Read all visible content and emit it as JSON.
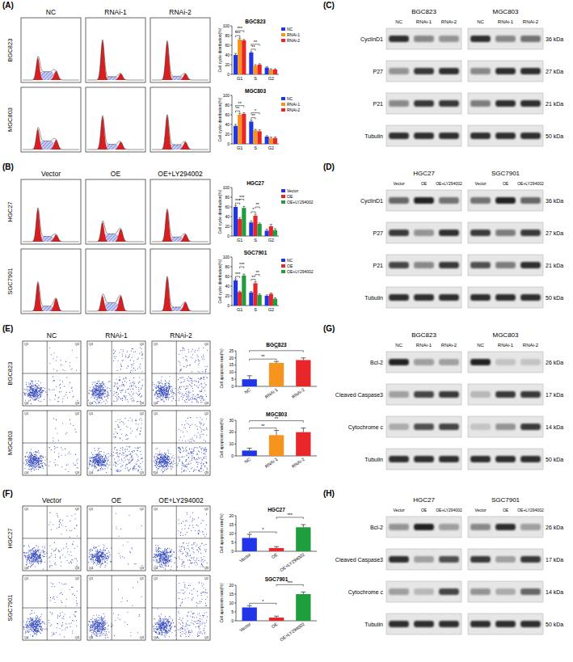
{
  "chart_data": [
    {
      "type": "bar",
      "title": "BGC823",
      "y_label": "Cell cycle distribution(%)",
      "categories": [
        "G1",
        "S",
        "G2"
      ],
      "series": [
        {
          "name": "NC",
          "color": "#1f35e6",
          "values": [
            40,
            45,
            14
          ],
          "errors": [
            3,
            2,
            2
          ]
        },
        {
          "name": "RNAi-1",
          "color": "#f7941d",
          "values": [
            72,
            18,
            10
          ],
          "errors": [
            3,
            2,
            1.5
          ]
        },
        {
          "name": "RNAi-2",
          "color": "#e8262a",
          "values": [
            70,
            20,
            10
          ],
          "errors": [
            2,
            2,
            1.5
          ]
        }
      ],
      "ylim": [
        0,
        100
      ],
      "yticks": [
        0,
        20,
        40,
        60,
        80,
        100
      ],
      "legend": "right",
      "annotations": [
        {
          "text": "***",
          "category": "G1",
          "between": [
            "NC",
            "RNAi-1"
          ]
        },
        {
          "text": "***",
          "category": "G1",
          "between": [
            "NC",
            "RNAi-2"
          ]
        },
        {
          "text": "**",
          "category": "S",
          "between": [
            "NC",
            "RNAi-1"
          ]
        },
        {
          "text": "**",
          "category": "S",
          "between": [
            "NC",
            "RNAi-2"
          ]
        }
      ]
    },
    {
      "type": "bar",
      "title": "MGC803",
      "y_label": "Cell cycle distribution(%)",
      "categories": [
        "G1",
        "S",
        "G2"
      ],
      "series": [
        {
          "name": "NC",
          "color": "#1f35e6",
          "values": [
            37,
            46,
            15
          ],
          "errors": [
            3,
            3,
            2
          ]
        },
        {
          "name": "RNAi-1",
          "color": "#f7941d",
          "values": [
            60,
            28,
            12
          ],
          "errors": [
            3,
            2,
            2
          ]
        },
        {
          "name": "RNAi-2",
          "color": "#e8262a",
          "values": [
            62,
            26,
            12
          ],
          "errors": [
            2,
            3,
            2
          ]
        }
      ],
      "ylim": [
        0,
        100
      ],
      "yticks": [
        0,
        20,
        40,
        60,
        80,
        100
      ],
      "legend": "right",
      "annotations": [
        {
          "text": "**",
          "category": "G1",
          "between": [
            "NC",
            "RNAi-1"
          ]
        },
        {
          "text": "**",
          "category": "G1",
          "between": [
            "NC",
            "RNAi-2"
          ]
        },
        {
          "text": "**",
          "category": "S",
          "between": [
            "NC",
            "RNAi-1"
          ]
        },
        {
          "text": "*",
          "category": "S",
          "between": [
            "NC",
            "RNAi-2"
          ]
        }
      ]
    },
    {
      "type": "bar",
      "title": "HGC27",
      "y_label": "Cell cycle distribution(%)",
      "categories": [
        "G1",
        "S",
        "G2"
      ],
      "series": [
        {
          "name": "Vector",
          "color": "#1f35e6",
          "values": [
            60,
            28,
            11
          ],
          "errors": [
            3,
            3,
            3
          ]
        },
        {
          "name": "OE",
          "color": "#e8262a",
          "values": [
            35,
            42,
            20
          ],
          "errors": [
            3,
            3,
            4
          ]
        },
        {
          "name": "OE+LY294002",
          "color": "#1e9e3c",
          "values": [
            58,
            25,
            12
          ],
          "errors": [
            3,
            2,
            3
          ]
        }
      ],
      "ylim": [
        0,
        100
      ],
      "yticks": [
        0,
        20,
        40,
        60,
        80,
        100
      ],
      "legend": "right",
      "annotations": [
        {
          "text": "***",
          "category": "G1",
          "between": [
            "Vector",
            "OE"
          ]
        },
        {
          "text": "***",
          "category": "G1",
          "between": [
            "OE",
            "OE+LY294002"
          ]
        },
        {
          "text": "*",
          "category": "S",
          "between": [
            "Vector",
            "OE"
          ]
        },
        {
          "text": "**",
          "category": "S",
          "between": [
            "OE",
            "OE+LY294002"
          ]
        }
      ]
    },
    {
      "type": "bar",
      "title": "SGC7901",
      "y_label": "Cell cycle distribution(%)",
      "categories": [
        "G1",
        "S",
        "G2"
      ],
      "series": [
        {
          "name": "NC",
          "color": "#1f35e6",
          "values": [
            52,
            27,
            20
          ],
          "errors": [
            3,
            2,
            2
          ]
        },
        {
          "name": "OE",
          "color": "#e8262a",
          "values": [
            28,
            46,
            24
          ],
          "errors": [
            2,
            3,
            2
          ]
        },
        {
          "name": "OE+LY294002",
          "color": "#1e9e3c",
          "values": [
            62,
            22,
            14
          ],
          "errors": [
            3,
            2,
            2
          ]
        }
      ],
      "ylim": [
        0,
        100
      ],
      "yticks": [
        0,
        20,
        40,
        60,
        80,
        100
      ],
      "legend": "right",
      "annotations": [
        {
          "text": "***",
          "category": "G1",
          "between": [
            "NC",
            "OE"
          ]
        },
        {
          "text": "***",
          "category": "G1",
          "between": [
            "OE",
            "OE+LY294002"
          ]
        },
        {
          "text": "**",
          "category": "S",
          "between": [
            "NC",
            "OE"
          ]
        },
        {
          "text": "**",
          "category": "S",
          "between": [
            "OE",
            "OE+LY294002"
          ]
        }
      ]
    },
    {
      "type": "bar",
      "title": "BGC823",
      "y_label": "Cell apoptosis rate(%)",
      "categories": [
        "NC",
        "RNAi-1",
        "RNAi-2"
      ],
      "values": [
        5,
        16.5,
        18.5
      ],
      "errors": [
        2.5,
        1,
        1.5
      ],
      "colors": [
        "#1f35e6",
        "#f7941d",
        "#e8262a"
      ],
      "ylim": [
        0,
        25
      ],
      "yticks": [
        0,
        5,
        10,
        15,
        20,
        25
      ],
      "annotations": [
        {
          "text": "**",
          "between": [
            "NC",
            "RNAi-1"
          ]
        },
        {
          "text": "**",
          "between": [
            "NC",
            "RNAi-2"
          ]
        }
      ]
    },
    {
      "type": "bar",
      "title": "MGC803",
      "y_label": "Cell apoptosis rate(%)",
      "categories": [
        "NC",
        "RNAi-1",
        "RNAi-2"
      ],
      "values": [
        4.5,
        17.5,
        20
      ],
      "errors": [
        2,
        4,
        3.5
      ],
      "colors": [
        "#1f35e6",
        "#f7941d",
        "#e8262a"
      ],
      "ylim": [
        0,
        30
      ],
      "yticks": [
        0,
        10,
        20,
        30
      ],
      "annotations": [
        {
          "text": "**",
          "between": [
            "NC",
            "RNAi-1"
          ]
        },
        {
          "text": "**",
          "between": [
            "NC",
            "RNAi-2"
          ]
        }
      ]
    },
    {
      "type": "bar",
      "title": "HGC27",
      "y_label": "Cell apoptosis rate(%)",
      "categories": [
        "Vector",
        "OE",
        "OE+LY294002"
      ],
      "values": [
        7.5,
        1.8,
        13.5
      ],
      "errors": [
        2,
        0.8,
        1.5
      ],
      "colors": [
        "#1f35e6",
        "#e8262a",
        "#1e9e3c"
      ],
      "ylim": [
        0,
        20
      ],
      "yticks": [
        0,
        5,
        10,
        15,
        20
      ],
      "annotations": [
        {
          "text": "*",
          "between": [
            "Vector",
            "OE"
          ]
        },
        {
          "text": "***",
          "between": [
            "OE",
            "OE+LY294002"
          ]
        }
      ]
    },
    {
      "type": "bar",
      "title": "SGC7901",
      "y_label": "Cell apoptosis rate(%)",
      "categories": [
        "Vector",
        "OE",
        "OE+LY294002"
      ],
      "values": [
        7.5,
        1.8,
        15
      ],
      "errors": [
        1,
        0.8,
        1.2
      ],
      "colors": [
        "#1f35e6",
        "#e8262a",
        "#1e9e3c"
      ],
      "ylim": [
        0,
        20
      ],
      "yticks": [
        0,
        5,
        10,
        15,
        20
      ],
      "annotations": [
        {
          "text": "*",
          "between": [
            "Vector",
            "OE"
          ]
        },
        {
          "text": "***",
          "between": [
            "OE",
            "OE+LY294002"
          ]
        }
      ]
    }
  ],
  "figure": {
    "panels": [
      {
        "label": "(A)",
        "columns": [
          "NC",
          "RNAi-1",
          "RNAi-2"
        ],
        "rows": [
          "BGC823",
          "MGC803"
        ]
      },
      {
        "label": "(B)",
        "columns": [
          "Vector",
          "OE",
          "OE+LY294002"
        ],
        "rows": [
          "HGC27",
          "SGC7901"
        ]
      },
      {
        "label": "(C)",
        "groups": [
          "BGC823",
          "MGC803"
        ],
        "lanes": [
          "NC",
          "RNAi-1",
          "RNAi-2"
        ],
        "rows": [
          {
            "name": "CyclinD1",
            "size": "36 kDa",
            "bands": [
              0.85,
              0.45,
              0.4,
              0.85,
              0.45,
              0.55
            ]
          },
          {
            "name": "P27",
            "size": "27 kDa",
            "bands": [
              0.4,
              0.8,
              0.85,
              0.45,
              0.85,
              0.85
            ]
          },
          {
            "name": "P21",
            "size": "21 kDa",
            "bands": [
              0.45,
              0.8,
              0.8,
              0.5,
              0.85,
              0.85
            ]
          },
          {
            "name": "Tubulin",
            "size": "50 kDa",
            "bands": [
              0.85,
              0.85,
              0.85,
              0.85,
              0.85,
              0.85
            ]
          }
        ]
      },
      {
        "label": "(D)",
        "groups": [
          "HGC27",
          "SGC7901"
        ],
        "lanes": [
          "Vector",
          "OE",
          "OE+LY294002"
        ],
        "rows": [
          {
            "name": "CyclinD1",
            "size": "36 kDa",
            "bands": [
              0.6,
              0.9,
              0.55,
              0.55,
              0.9,
              0.6
            ]
          },
          {
            "name": "P27",
            "size": "27 kDa",
            "bands": [
              0.8,
              0.4,
              0.85,
              0.8,
              0.5,
              0.8
            ]
          },
          {
            "name": "P21",
            "size": "21 kDa",
            "bands": [
              0.75,
              0.45,
              0.8,
              0.7,
              0.5,
              0.85
            ]
          },
          {
            "name": "Tubulin",
            "size": "50 kDa",
            "bands": [
              0.85,
              0.85,
              0.85,
              0.85,
              0.85,
              0.85
            ]
          }
        ]
      },
      {
        "label": "(E)",
        "columns": [
          "NC",
          "RNAi-1",
          "RNAi-2"
        ],
        "rows": [
          "BGC823",
          "MGC803"
        ],
        "quadrants": [
          "Q1",
          "Q2",
          "Q3",
          "Q4"
        ]
      },
      {
        "label": "(F)",
        "columns": [
          "Vector",
          "OE",
          "OE+LY294002"
        ],
        "rows": [
          "HGC27",
          "SGC7901"
        ],
        "quadrants": [
          "Q1",
          "Q2",
          "Q3",
          "Q4"
        ]
      },
      {
        "label": "(G)",
        "groups": [
          "BGC823",
          "MGC803"
        ],
        "lanes": [
          "NC",
          "RNAi-1",
          "RNAi-2"
        ],
        "rows": [
          {
            "name": "Bcl-2",
            "size": "26 kDa",
            "bands": [
              0.9,
              0.35,
              0.3,
              0.9,
              0.15,
              0.15
            ]
          },
          {
            "name": "Cleaved Caspase3",
            "size": "17 kDa",
            "bands": [
              0.3,
              0.75,
              0.8,
              0.2,
              0.8,
              0.8
            ]
          },
          {
            "name": "Cytochrome c",
            "size": "14 kDa",
            "bands": [
              0.25,
              0.7,
              0.75,
              0.15,
              0.4,
              0.8
            ]
          },
          {
            "name": "Tubulin",
            "size": "50 kDa",
            "bands": [
              0.85,
              0.85,
              0.85,
              0.85,
              0.85,
              0.85
            ]
          }
        ]
      },
      {
        "label": "(H)",
        "groups": [
          "HGC27",
          "SGC7901"
        ],
        "lanes": [
          "Vector",
          "OE",
          "OE+LY294002"
        ],
        "rows": [
          {
            "name": "Bcl-2",
            "size": "26 kDa",
            "bands": [
              0.4,
              0.9,
              0.35,
              0.45,
              0.85,
              0.35
            ]
          },
          {
            "name": "Cleaved Caspase3",
            "size": "17 kDa",
            "bands": [
              0.85,
              0.3,
              0.7,
              0.8,
              0.3,
              0.8
            ]
          },
          {
            "name": "Cytochrome c",
            "size": "14 kDa",
            "bands": [
              0.35,
              0.2,
              0.75,
              0.4,
              0.25,
              0.6
            ]
          },
          {
            "name": "Tubulin",
            "size": "50 kDa",
            "bands": [
              0.85,
              0.85,
              0.85,
              0.85,
              0.85,
              0.85
            ]
          }
        ]
      }
    ]
  }
}
